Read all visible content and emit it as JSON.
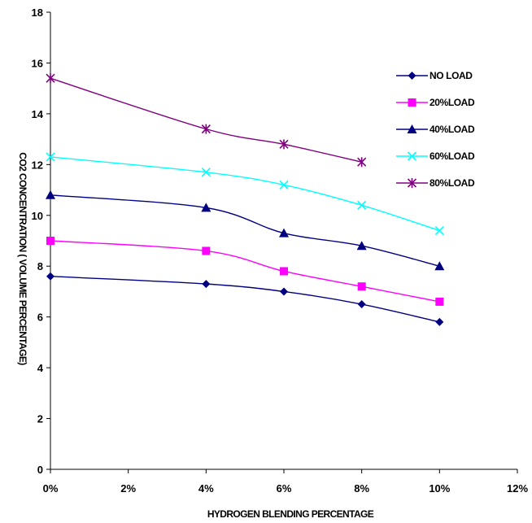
{
  "chart_data": {
    "type": "line",
    "title": "",
    "xlabel": "HYDROGEN BLENDING PERCENTAGE",
    "ylabel": "CO2 CONCENTRATION ( VOLUME PERCENTAGE)",
    "xlim": [
      0,
      12
    ],
    "ylim": [
      0,
      18
    ],
    "x_ticks": [
      0,
      2,
      4,
      6,
      8,
      10,
      12
    ],
    "x_tick_labels": [
      "0%",
      "2%",
      "4%",
      "6%",
      "8%",
      "10%",
      "12%"
    ],
    "y_ticks": [
      0,
      2,
      4,
      6,
      8,
      10,
      12,
      14,
      16,
      18
    ],
    "y_tick_labels": [
      "0",
      "2",
      "4",
      "6",
      "8",
      "10",
      "12",
      "14",
      "16",
      "18"
    ],
    "grid": false,
    "legend_position": "right",
    "series": [
      {
        "name": "NO LOAD",
        "color": "#000080",
        "marker": "diamond",
        "x": [
          0,
          4,
          6,
          8,
          10
        ],
        "y": [
          7.6,
          7.3,
          7.0,
          6.5,
          5.8
        ]
      },
      {
        "name": "20%LOAD",
        "color": "#FF00FF",
        "marker": "square",
        "x": [
          0,
          4,
          6,
          8,
          10
        ],
        "y": [
          9.0,
          8.6,
          7.8,
          7.2,
          6.6
        ]
      },
      {
        "name": "40%LOAD",
        "color": "#000080",
        "marker": "triangle",
        "x": [
          0,
          4,
          6,
          8,
          10
        ],
        "y": [
          10.8,
          10.3,
          9.3,
          8.8,
          8.0
        ]
      },
      {
        "name": "60%LOAD",
        "color": "#00FFFF",
        "marker": "x",
        "x": [
          0,
          4,
          6,
          8,
          10
        ],
        "y": [
          12.3,
          11.7,
          11.2,
          10.4,
          9.4
        ]
      },
      {
        "name": "80%LOAD",
        "color": "#800080",
        "marker": "star",
        "x": [
          0,
          4,
          6,
          8
        ],
        "y": [
          15.4,
          13.4,
          12.8,
          12.1
        ]
      }
    ]
  }
}
